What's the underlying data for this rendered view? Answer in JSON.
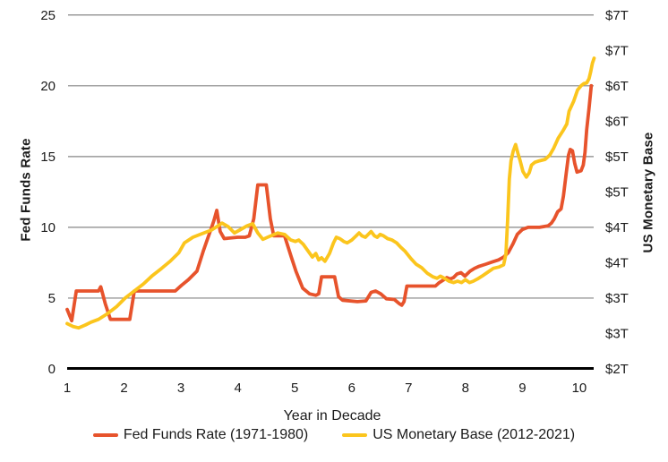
{
  "chart_data": {
    "type": "line",
    "title": "",
    "x_axis": {
      "label": "Year in Decade",
      "ticks": [
        1,
        2,
        3,
        4,
        5,
        6,
        7,
        8,
        9,
        10
      ],
      "range": [
        1,
        10.4
      ],
      "grid": false
    },
    "y_axis_left": {
      "label": "Fed Funds Rate",
      "ticks": [
        0,
        5,
        10,
        15,
        20,
        25
      ],
      "range": [
        0,
        25
      ],
      "grid": true
    },
    "y_axis_right": {
      "label": "US Monetary Base",
      "tick_values_trillions": [
        2,
        2.5,
        3,
        3.5,
        4,
        4.5,
        5,
        5.5,
        6,
        6.5,
        7
      ],
      "tick_labels": [
        "$2T",
        "$3T",
        "$3T",
        "$4T",
        "$4T",
        "$5T",
        "$5T",
        "$6T",
        "$6T",
        "$7T",
        "$7T"
      ],
      "range_trillions": [
        2,
        7
      ]
    },
    "colors": {
      "fed_funds": "#E7532C",
      "monetary_base": "#FBC51D",
      "gridline": "#858585",
      "axis_line": "#000000",
      "text": "#1a1a1a"
    },
    "legend_position": "bottom",
    "series": [
      {
        "name": "Fed Funds Rate (1971-1980)",
        "axis": "left",
        "unit": "percent",
        "color": "#E7532C",
        "points": [
          [
            1.0,
            4.2
          ],
          [
            1.08,
            3.4
          ],
          [
            1.16,
            5.5
          ],
          [
            1.55,
            5.5
          ],
          [
            1.59,
            5.8
          ],
          [
            1.67,
            4.6
          ],
          [
            1.76,
            3.5
          ],
          [
            2.1,
            3.5
          ],
          [
            2.18,
            5.5
          ],
          [
            2.9,
            5.5
          ],
          [
            3.01,
            5.9
          ],
          [
            3.13,
            6.3
          ],
          [
            3.28,
            6.9
          ],
          [
            3.39,
            8.3
          ],
          [
            3.46,
            9.1
          ],
          [
            3.53,
            9.9
          ],
          [
            3.58,
            10.5
          ],
          [
            3.63,
            11.2
          ],
          [
            3.69,
            9.7
          ],
          [
            3.76,
            9.2
          ],
          [
            4.0,
            9.3
          ],
          [
            4.13,
            9.3
          ],
          [
            4.2,
            9.4
          ],
          [
            4.28,
            10.6
          ],
          [
            4.35,
            13.0
          ],
          [
            4.5,
            13.0
          ],
          [
            4.57,
            10.6
          ],
          [
            4.63,
            9.4
          ],
          [
            4.82,
            9.4
          ],
          [
            4.93,
            8.0
          ],
          [
            5.02,
            6.9
          ],
          [
            5.14,
            5.7
          ],
          [
            5.26,
            5.3
          ],
          [
            5.37,
            5.2
          ],
          [
            5.42,
            5.3
          ],
          [
            5.47,
            6.5
          ],
          [
            5.7,
            6.5
          ],
          [
            5.77,
            5.1
          ],
          [
            5.84,
            4.85
          ],
          [
            6.1,
            4.75
          ],
          [
            6.25,
            4.8
          ],
          [
            6.34,
            5.4
          ],
          [
            6.42,
            5.5
          ],
          [
            6.51,
            5.3
          ],
          [
            6.61,
            4.95
          ],
          [
            6.75,
            4.9
          ],
          [
            6.84,
            4.6
          ],
          [
            6.88,
            4.5
          ],
          [
            6.92,
            4.75
          ],
          [
            6.97,
            5.85
          ],
          [
            7.47,
            5.85
          ],
          [
            7.54,
            6.1
          ],
          [
            7.62,
            6.3
          ],
          [
            7.67,
            6.45
          ],
          [
            7.73,
            6.35
          ],
          [
            7.79,
            6.45
          ],
          [
            7.85,
            6.7
          ],
          [
            7.92,
            6.8
          ],
          [
            7.99,
            6.55
          ],
          [
            8.08,
            6.9
          ],
          [
            8.16,
            7.1
          ],
          [
            8.24,
            7.25
          ],
          [
            8.36,
            7.4
          ],
          [
            8.47,
            7.55
          ],
          [
            8.58,
            7.7
          ],
          [
            8.67,
            7.9
          ],
          [
            8.75,
            8.2
          ],
          [
            8.83,
            8.8
          ],
          [
            8.91,
            9.5
          ],
          [
            9.0,
            9.85
          ],
          [
            9.1,
            10.0
          ],
          [
            9.3,
            10.0
          ],
          [
            9.45,
            10.1
          ],
          [
            9.51,
            10.3
          ],
          [
            9.56,
            10.6
          ],
          [
            9.62,
            11.1
          ],
          [
            9.68,
            11.3
          ],
          [
            9.72,
            12.2
          ],
          [
            9.77,
            13.8
          ],
          [
            9.81,
            15.1
          ],
          [
            9.84,
            15.5
          ],
          [
            9.88,
            15.4
          ],
          [
            9.92,
            14.5
          ],
          [
            9.96,
            13.9
          ],
          [
            10.03,
            14.0
          ],
          [
            10.07,
            14.4
          ],
          [
            10.1,
            15.3
          ],
          [
            10.13,
            16.9
          ],
          [
            10.17,
            18.4
          ],
          [
            10.21,
            20.0
          ]
        ]
      },
      {
        "name": "US Monetary Base (2012-2021)",
        "axis": "right",
        "unit": "trillions_usd",
        "color": "#FBC51D",
        "points": [
          [
            1.0,
            2.64
          ],
          [
            1.1,
            2.6
          ],
          [
            1.2,
            2.58
          ],
          [
            1.32,
            2.62
          ],
          [
            1.42,
            2.66
          ],
          [
            1.55,
            2.7
          ],
          [
            1.71,
            2.78
          ],
          [
            1.87,
            2.88
          ],
          [
            2.02,
            3.0
          ],
          [
            2.18,
            3.1
          ],
          [
            2.34,
            3.2
          ],
          [
            2.5,
            3.32
          ],
          [
            2.66,
            3.42
          ],
          [
            2.81,
            3.52
          ],
          [
            2.96,
            3.64
          ],
          [
            3.06,
            3.78
          ],
          [
            3.21,
            3.86
          ],
          [
            3.37,
            3.91
          ],
          [
            3.53,
            3.96
          ],
          [
            3.65,
            4.02
          ],
          [
            3.72,
            4.06
          ],
          [
            3.83,
            4.01
          ],
          [
            3.94,
            3.92
          ],
          [
            4.05,
            3.97
          ],
          [
            4.16,
            4.02
          ],
          [
            4.26,
            4.05
          ],
          [
            4.35,
            3.92
          ],
          [
            4.44,
            3.83
          ],
          [
            4.55,
            3.87
          ],
          [
            4.7,
            3.92
          ],
          [
            4.82,
            3.9
          ],
          [
            4.93,
            3.82
          ],
          [
            5.01,
            3.8
          ],
          [
            5.07,
            3.82
          ],
          [
            5.15,
            3.76
          ],
          [
            5.23,
            3.67
          ],
          [
            5.31,
            3.58
          ],
          [
            5.37,
            3.63
          ],
          [
            5.42,
            3.54
          ],
          [
            5.47,
            3.57
          ],
          [
            5.53,
            3.52
          ],
          [
            5.61,
            3.63
          ],
          [
            5.68,
            3.78
          ],
          [
            5.73,
            3.86
          ],
          [
            5.79,
            3.84
          ],
          [
            5.86,
            3.8
          ],
          [
            5.92,
            3.78
          ],
          [
            6.0,
            3.82
          ],
          [
            6.08,
            3.88
          ],
          [
            6.13,
            3.92
          ],
          [
            6.18,
            3.88
          ],
          [
            6.24,
            3.86
          ],
          [
            6.29,
            3.9
          ],
          [
            6.34,
            3.94
          ],
          [
            6.4,
            3.88
          ],
          [
            6.45,
            3.86
          ],
          [
            6.5,
            3.9
          ],
          [
            6.56,
            3.88
          ],
          [
            6.63,
            3.84
          ],
          [
            6.71,
            3.82
          ],
          [
            6.79,
            3.78
          ],
          [
            6.86,
            3.72
          ],
          [
            6.94,
            3.66
          ],
          [
            7.04,
            3.56
          ],
          [
            7.13,
            3.48
          ],
          [
            7.23,
            3.43
          ],
          [
            7.33,
            3.35
          ],
          [
            7.43,
            3.3
          ],
          [
            7.5,
            3.28
          ],
          [
            7.56,
            3.31
          ],
          [
            7.63,
            3.28
          ],
          [
            7.71,
            3.24
          ],
          [
            7.79,
            3.22
          ],
          [
            7.86,
            3.24
          ],
          [
            7.93,
            3.22
          ],
          [
            8.0,
            3.26
          ],
          [
            8.07,
            3.22
          ],
          [
            8.14,
            3.24
          ],
          [
            8.21,
            3.27
          ],
          [
            8.29,
            3.31
          ],
          [
            8.38,
            3.36
          ],
          [
            8.49,
            3.42
          ],
          [
            8.59,
            3.44
          ],
          [
            8.67,
            3.47
          ],
          [
            8.71,
            3.62
          ],
          [
            8.74,
            4.1
          ],
          [
            8.77,
            4.68
          ],
          [
            8.8,
            4.94
          ],
          [
            8.84,
            5.08
          ],
          [
            8.88,
            5.17
          ],
          [
            8.92,
            5.05
          ],
          [
            8.96,
            4.94
          ],
          [
            9.01,
            4.79
          ],
          [
            9.07,
            4.71
          ],
          [
            9.12,
            4.77
          ],
          [
            9.16,
            4.88
          ],
          [
            9.22,
            4.92
          ],
          [
            9.3,
            4.94
          ],
          [
            9.4,
            4.96
          ],
          [
            9.48,
            5.02
          ],
          [
            9.55,
            5.12
          ],
          [
            9.63,
            5.26
          ],
          [
            9.71,
            5.36
          ],
          [
            9.78,
            5.46
          ],
          [
            9.82,
            5.64
          ],
          [
            9.9,
            5.78
          ],
          [
            9.97,
            5.94
          ],
          [
            10.03,
            6.0
          ],
          [
            10.08,
            6.03
          ],
          [
            10.13,
            6.04
          ],
          [
            10.17,
            6.1
          ],
          [
            10.2,
            6.2
          ],
          [
            10.23,
            6.32
          ],
          [
            10.26,
            6.39
          ]
        ]
      }
    ]
  }
}
